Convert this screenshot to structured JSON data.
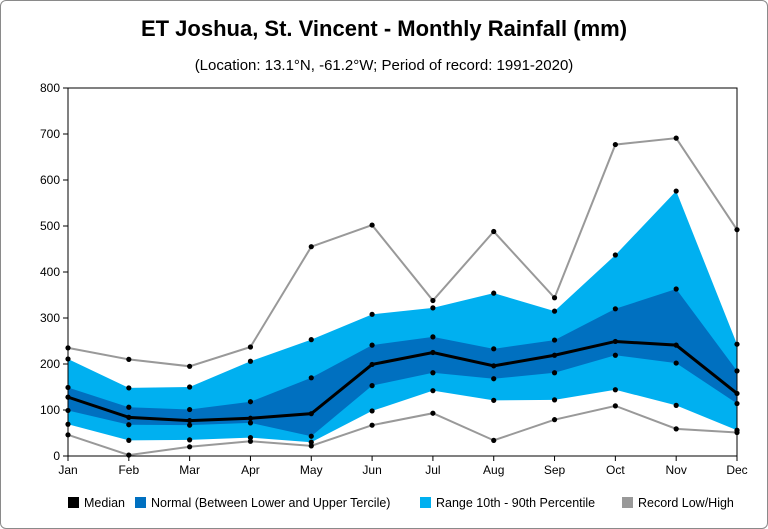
{
  "chart_data": {
    "type": "area",
    "title": "ET Joshua, St. Vincent - Monthly Rainfall (mm)",
    "subtitle": "(Location: 13.1°N, -61.2°W; Period of record: 1991-2020)",
    "categories": [
      "Jan",
      "Feb",
      "Mar",
      "Apr",
      "May",
      "Jun",
      "Jul",
      "Aug",
      "Sep",
      "Oct",
      "Nov",
      "Dec"
    ],
    "ylim": [
      0,
      800
    ],
    "yticks": [
      0,
      100,
      200,
      300,
      400,
      500,
      600,
      700,
      800
    ],
    "grid": false,
    "legend_position": "bottom",
    "series": [
      {
        "name": "Record Low/High",
        "key": "record_high",
        "color": "#999999",
        "values": [
          235,
          210,
          195,
          237,
          455,
          502,
          338,
          488,
          344,
          677,
          691,
          492
        ]
      },
      {
        "name": "Record Low/High",
        "key": "record_low",
        "color": "#999999",
        "values": [
          46,
          2,
          20,
          32,
          22,
          67,
          93,
          34,
          79,
          109,
          59,
          51
        ]
      },
      {
        "name": "Range 10th - 90th Percentile",
        "key": "p90",
        "color": "#00b0f0",
        "values": [
          211,
          148,
          150,
          206,
          253,
          308,
          322,
          354,
          315,
          437,
          576,
          243
        ]
      },
      {
        "name": "Range 10th - 90th Percentile",
        "key": "p10",
        "color": "#00b0f0",
        "values": [
          69,
          34,
          35,
          40,
          30,
          98,
          142,
          121,
          122,
          144,
          110,
          56
        ]
      },
      {
        "name": "Normal (Between Lower and Upper Tercile)",
        "key": "upper_tercile",
        "color": "#0070c0",
        "values": [
          149,
          106,
          101,
          118,
          170,
          241,
          259,
          233,
          252,
          320,
          363,
          185
        ]
      },
      {
        "name": "Normal (Between Lower and Upper Tercile)",
        "key": "lower_tercile",
        "color": "#0070c0",
        "values": [
          99,
          68,
          67,
          72,
          43,
          153,
          181,
          168,
          181,
          219,
          202,
          114
        ]
      },
      {
        "name": "Median",
        "key": "median",
        "color": "#000000",
        "values": [
          128,
          84,
          77,
          82,
          92,
          199,
          225,
          196,
          219,
          249,
          241,
          136
        ]
      }
    ],
    "legend": [
      {
        "label": "Median",
        "color": "#000000"
      },
      {
        "label": "Normal (Between Lower and Upper Tercile)",
        "color": "#0070c0"
      },
      {
        "label": "Range 10th - 90th Percentile",
        "color": "#00b0f0"
      },
      {
        "label": "Record Low/High",
        "color": "#999999"
      }
    ]
  }
}
